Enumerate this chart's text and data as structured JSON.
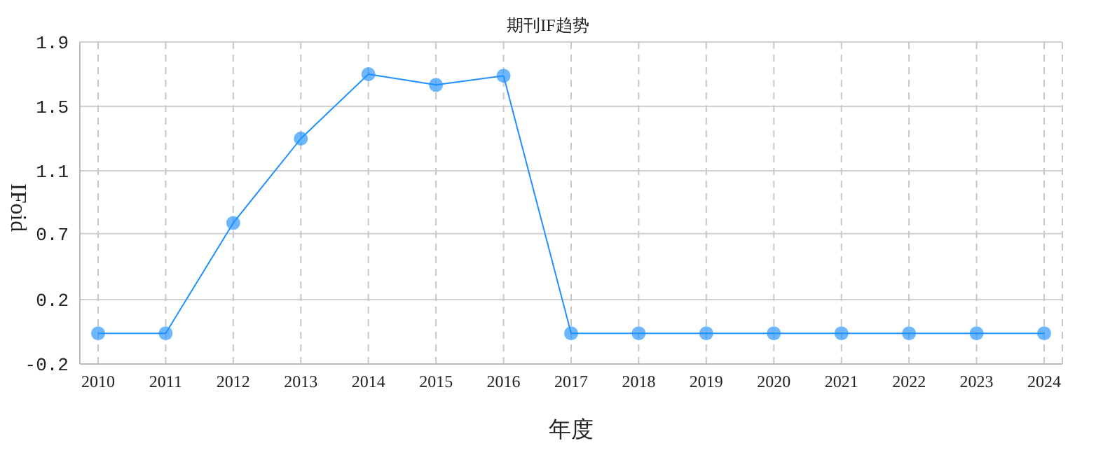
{
  "chart_data": {
    "type": "line",
    "title": "期刊IF趋势",
    "xlabel": "年度",
    "ylabel": "IFoid",
    "categories": [
      "2010",
      "2011",
      "2012",
      "2013",
      "2014",
      "2015",
      "2016",
      "2017",
      "2018",
      "2019",
      "2020",
      "2021",
      "2022",
      "2023",
      "2024"
    ],
    "series": [
      {
        "color": "#1e90ff",
        "values": [
          0,
          0,
          0.72,
          1.27,
          1.69,
          1.62,
          1.68,
          0,
          0,
          0,
          0,
          0,
          0,
          0,
          0
        ]
      }
    ],
    "ylim": [
      -0.2,
      1.9
    ],
    "yticks": [
      -0.2,
      {
        "value": 0.22,
        "label": "0.2"
      },
      {
        "value": 0.65,
        "label": "0.7"
      },
      {
        "value": 1.06,
        "label": "1.1"
      },
      {
        "value": 1.48,
        "label": "1.5"
      },
      1.9
    ],
    "grid": true,
    "marker": "circle",
    "line_style": "solid"
  }
}
